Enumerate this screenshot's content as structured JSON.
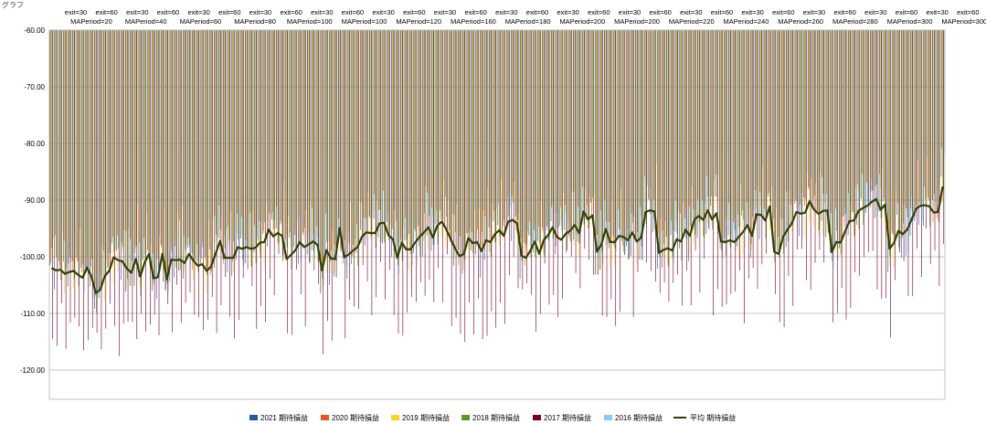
{
  "chart_title": "グラフ",
  "chart_data": {
    "type": "bar",
    "title": "グラフ",
    "xlabel": "",
    "ylabel": "",
    "ylim": [
      -125,
      -60
    ],
    "yticks": [
      -60,
      -70,
      -80,
      -90,
      -100,
      -110,
      -120
    ],
    "ytick_labels": [
      "-60.00",
      "-70.00",
      "-80.00",
      "-90.00",
      "-100.00",
      "-110.00",
      "-120.00"
    ],
    "grid": true,
    "legend_position": "bottom",
    "category_label_row1": [
      "exit=30",
      "exit=60",
      "exit=30",
      "exit=60",
      "exit=30",
      "exit=60",
      "exit=30",
      "exit=60",
      "exit=30",
      "exit=60",
      "exit=30",
      "exit=60",
      "exit=30",
      "exit=60",
      "exit=30",
      "exit=60",
      "exit=30",
      "exit=60",
      "exit=30",
      "exit=60",
      "exit=30",
      "exit=60",
      "exit=30",
      "exit=60",
      "exit=30",
      "exit=60",
      "exit=30",
      "exit=60",
      "exit=30",
      "exit=60"
    ],
    "category_label_row2": [
      "MAPeriod=20",
      "MAPeriod=40",
      "MAPeriod=60",
      "MAPeriod=80",
      "MAPeriod=100",
      "MAPeriod=100",
      "MAPeriod=120",
      "MAPeriod=160",
      "MAPeriod=180",
      "MAPeriod=200",
      "MAPeriod=200",
      "MAPeriod=220",
      "MAPeriod=240",
      "MAPeriod=260",
      "MAPeriod=280",
      "MAPeriod=300",
      "MAPeriod=300"
    ],
    "series": [
      {
        "name": "2021 期待損益",
        "color": "#1f5a9a"
      },
      {
        "name": "2020 期待損益",
        "color": "#e8541e"
      },
      {
        "name": "2019 期待損益",
        "color": "#ffd320"
      },
      {
        "name": "2018 期待損益",
        "color": "#579d1c"
      },
      {
        "name": "2017 期待損益",
        "color": "#7e0021"
      },
      {
        "name": "2016 期待損益",
        "color": "#83caff"
      },
      {
        "name": "平均 期待損益",
        "color": "#314004",
        "kind": "line"
      }
    ],
    "average_line": [
      -102,
      -102.4,
      -102.3,
      -103,
      -102.7,
      -102.5,
      -103.2,
      -103.7,
      -101.9,
      -103.5,
      -106.4,
      -105.8,
      -103.4,
      -102.5,
      -100.1,
      -100.6,
      -100.8,
      -102.1,
      -102.8,
      -100.4,
      -103.5,
      -101,
      -99.5,
      -103.8,
      -103.6,
      -99.5,
      -104,
      -100.5,
      -100.6,
      -100.5,
      -101.1,
      -99.5,
      -100.7,
      -101.6,
      -101.3,
      -102.5,
      -101.7,
      -99.5,
      -97.2,
      -100.2,
      -100.2,
      -100.2,
      -98.3,
      -98.6,
      -98.3,
      -98.6,
      -98.4,
      -97.5,
      -97.4,
      -95.2,
      -96.4,
      -95.8,
      -96.3,
      -100.4,
      -99.7,
      -98.8,
      -97.4,
      -98.3,
      -97.8,
      -97.3,
      -97.9,
      -102.4,
      -98.8,
      -100.3,
      -100.4,
      -94.9,
      -100.1,
      -99.6,
      -98.9,
      -98.3,
      -96.5,
      -95.7,
      -95.8,
      -95.8,
      -94.1,
      -94,
      -96.2,
      -96.9,
      -100.2,
      -97.5,
      -98.7,
      -98.7,
      -97.5,
      -96.5,
      -95.7,
      -94.8,
      -96.6,
      -94.5,
      -93.8,
      -95.1,
      -96.8,
      -98.5,
      -99.9,
      -99.5,
      -96.7,
      -97.6,
      -97.4,
      -99,
      -97.1,
      -97.4,
      -96,
      -95.3,
      -96.3,
      -93.8,
      -93.5,
      -94.1,
      -99.8,
      -100.2,
      -98.9,
      -97.3,
      -99.5,
      -97.1,
      -96.2,
      -94.8,
      -96.5,
      -97,
      -95.9,
      -95.4,
      -94.4,
      -95.8,
      -92,
      -93.4,
      -92.7,
      -99.1,
      -97.9,
      -95.1,
      -97.4,
      -97.4,
      -96.3,
      -96.5,
      -97.1,
      -95.7,
      -97.3,
      -96.6,
      -92.1,
      -91.8,
      -92,
      -99.3,
      -98.8,
      -98.5,
      -98.9,
      -96.9,
      -97.3,
      -95.2,
      -96.3,
      -93.4,
      -92.8,
      -93.5,
      -91.8,
      -93.4,
      -92.3,
      -97.3,
      -97.4,
      -97.1,
      -97.4,
      -96.5,
      -95.6,
      -94.4,
      -96.3,
      -92.5,
      -92.6,
      -93.6,
      -91.1,
      -99.1,
      -99.5,
      -96.5,
      -95.2,
      -94.1,
      -92.1,
      -92.4,
      -92.2,
      -90.2,
      -91.7,
      -92.4,
      -91.9,
      -91.8,
      -99.2,
      -97.4,
      -97.5,
      -95.5,
      -93.7,
      -93.6,
      -91.9,
      -91.4,
      -91,
      -90.3,
      -89.8,
      -91.7,
      -90.8,
      -98.6,
      -97.6,
      -95.4,
      -96,
      -95.2,
      -93.4,
      -91.5,
      -91,
      -90.9,
      -91.1,
      -92.2,
      -92.1,
      -87.6
    ]
  },
  "legend": {
    "items": [
      "2021 期待損益",
      "2020 期待損益",
      "2019 期待損益",
      "2018 期待損益",
      "2017 期待損益",
      "2016 期待損益",
      "平均 期待損益"
    ]
  }
}
